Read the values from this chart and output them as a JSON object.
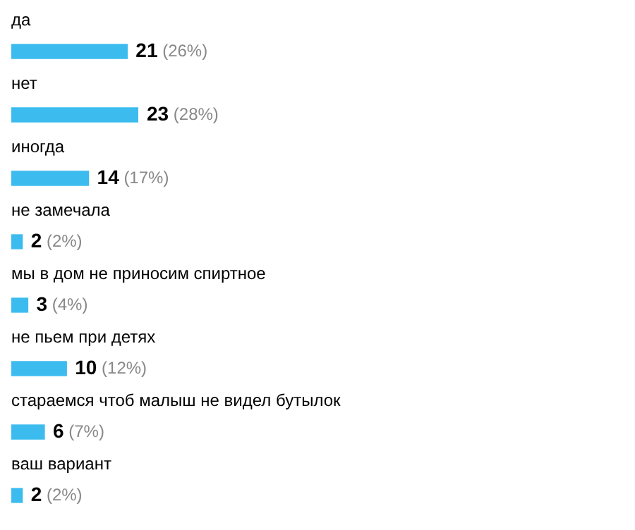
{
  "chart_data": {
    "type": "bar",
    "orientation": "horizontal",
    "categories": [
      "да",
      "нет",
      "иногда",
      "не замечала",
      "мы в дом не приносим спиртное",
      "не пьем при детях",
      "стараемся чтоб малыш не видел бутылок",
      "ваш вариант"
    ],
    "values": [
      21,
      23,
      14,
      2,
      3,
      10,
      6,
      2
    ],
    "value_labels": [
      "21 (26%)",
      "23 (28%)",
      "14 (17%)",
      "2 (2%)",
      "3 (4%)",
      "10 (12%)",
      "6 (7%)",
      "2 (2%)"
    ],
    "color": "#3cbcee"
  }
}
